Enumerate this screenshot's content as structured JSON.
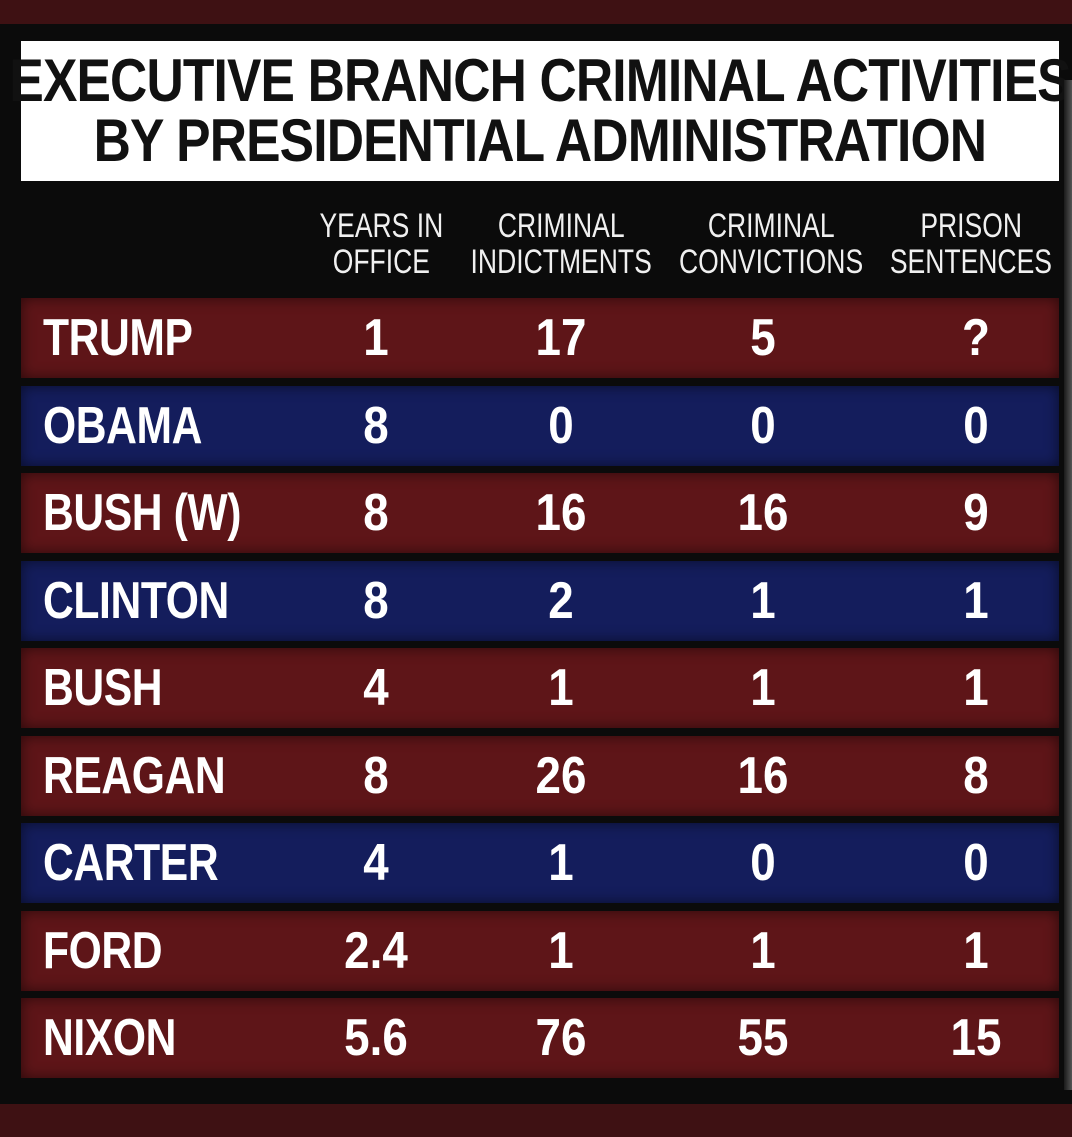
{
  "chart_data": {
    "type": "table",
    "title_lines": [
      "EXECUTIVE BRANCH CRIMINAL ACTIVITIES",
      "BY PRESIDENTIAL ADMINISTRATION"
    ],
    "columns": [
      {
        "lines": [
          "YEARS IN",
          "OFFICE"
        ]
      },
      {
        "lines": [
          "CRIMINAL",
          "INDICTMENTS"
        ]
      },
      {
        "lines": [
          "CRIMINAL",
          "CONVICTIONS"
        ]
      },
      {
        "lines": [
          "PRISON",
          "SENTENCES"
        ]
      }
    ],
    "rows": [
      {
        "name": "TRUMP",
        "color": "#5e1518",
        "values": [
          "1",
          "17",
          "5",
          "?"
        ]
      },
      {
        "name": "OBAMA",
        "color": "#141d5c",
        "values": [
          "8",
          "0",
          "0",
          "0"
        ]
      },
      {
        "name": "BUSH (W)",
        "color": "#5e1518",
        "values": [
          "8",
          "16",
          "16",
          "9"
        ]
      },
      {
        "name": "CLINTON",
        "color": "#141d5c",
        "values": [
          "8",
          "2",
          "1",
          "1"
        ]
      },
      {
        "name": "BUSH",
        "color": "#5e1518",
        "values": [
          "4",
          "1",
          "1",
          "1"
        ]
      },
      {
        "name": "REAGAN",
        "color": "#5e1518",
        "values": [
          "8",
          "26",
          "16",
          "8"
        ]
      },
      {
        "name": "CARTER",
        "color": "#141d5c",
        "values": [
          "4",
          "1",
          "0",
          "0"
        ]
      },
      {
        "name": "FORD",
        "color": "#5e1518",
        "values": [
          "2.4",
          "1",
          "1",
          "1"
        ]
      },
      {
        "name": "NIXON",
        "color": "#5e1518",
        "values": [
          "5.6",
          "76",
          "55",
          "15"
        ]
      }
    ]
  }
}
